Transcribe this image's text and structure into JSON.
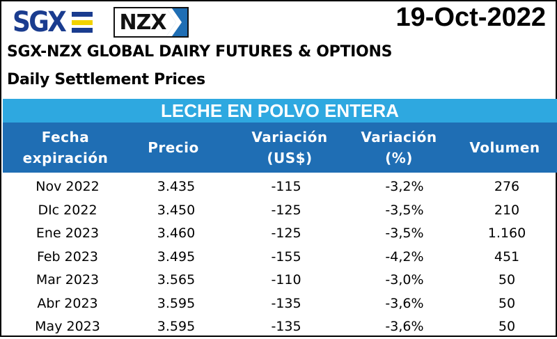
{
  "logos": {
    "sgx_text": "SGX",
    "nzx_text": "NZX",
    "colors": {
      "sgx_blue": "#1a3c8f",
      "sgx_yellow": "#f2d200",
      "nzx_blue": "#1f6eb4"
    }
  },
  "date": "19-Oct-2022",
  "title_line1": "SGX-NZX GLOBAL DAIRY FUTURES & OPTIONS",
  "title_line2": "Daily Settlement Prices",
  "banner": "LECHE EN POLVO ENTERA",
  "colors": {
    "banner_bg": "#2ea8e0",
    "header_bg": "#1f6eb4"
  },
  "columns": [
    {
      "line1": "Fecha",
      "line2": "expiración"
    },
    {
      "line1": "Precio",
      "line2": ""
    },
    {
      "line1": "Variación",
      "line2": "(US$)"
    },
    {
      "line1": "Variación",
      "line2": "(%)"
    },
    {
      "line1": "Volumen",
      "line2": ""
    }
  ],
  "rows": [
    [
      "Nov 2022",
      "3.435",
      "-115",
      "-3,2%",
      "276"
    ],
    [
      "DIc 2022",
      "3.450",
      "-125",
      "-3,5%",
      "210"
    ],
    [
      "Ene 2023",
      "3.460",
      "-125",
      "-3,5%",
      "1.160"
    ],
    [
      "Feb 2023",
      "3.495",
      "-155",
      "-4,2%",
      "451"
    ],
    [
      "Mar 2023",
      "3.565",
      "-110",
      "-3,0%",
      "50"
    ],
    [
      "Abr 2023",
      "3.595",
      "-135",
      "-3,6%",
      "50"
    ],
    [
      "May 2023",
      "3.595",
      "-135",
      "-3,6%",
      "50"
    ]
  ]
}
